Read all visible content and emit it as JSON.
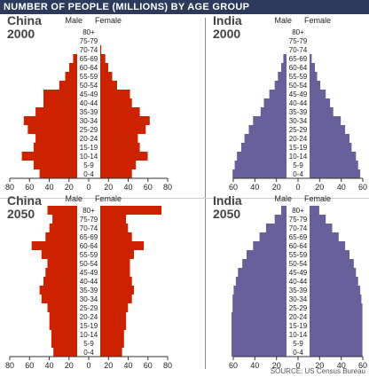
{
  "title": "NUMBER OF PEOPLE (MILLIONS) BY AGE GROUP",
  "source": "SOURCE: US Census Bureau",
  "colors": {
    "china": "#cc2200",
    "india": "#67609a",
    "title_bg": "#2d3a5c",
    "text": "#333333"
  },
  "chart_data": [
    {
      "type": "bar",
      "country": "China",
      "year": "2000",
      "male_label": "Male",
      "female_label": "Female",
      "categories": [
        "80+",
        "75-79",
        "70-74",
        "65-69",
        "60-64",
        "55-59",
        "50-54",
        "45-49",
        "40-44",
        "35-39",
        "30-34",
        "25-29",
        "20-24",
        "15-19",
        "10-14",
        "5-9",
        "0-4"
      ],
      "series": [
        {
          "name": "Male",
          "values": [
            2,
            6,
            10,
            14,
            18,
            22,
            28,
            44,
            44,
            52,
            64,
            60,
            52,
            54,
            66,
            54,
            48
          ]
        },
        {
          "name": "Female",
          "values": [
            3,
            7,
            11,
            15,
            18,
            22,
            27,
            40,
            42,
            50,
            60,
            56,
            48,
            50,
            58,
            46,
            42
          ]
        }
      ],
      "xticks": [
        "80",
        "60",
        "40",
        "20",
        "0",
        "20",
        "40",
        "60",
        "80"
      ],
      "xlim": [
        -80,
        80
      ]
    },
    {
      "type": "bar",
      "country": "India",
      "year": "2000",
      "male_label": "Male",
      "female_label": "Female",
      "categories": [
        "80+",
        "75-79",
        "70-74",
        "65-69",
        "60-64",
        "55-59",
        "50-54",
        "45-49",
        "40-44",
        "35-39",
        "30-34",
        "25-29",
        "20-24",
        "15-19",
        "10-14",
        "5-9",
        "0-4"
      ],
      "series": [
        {
          "name": "Male",
          "values": [
            2,
            4,
            8,
            12,
            14,
            17,
            20,
            25,
            30,
            33,
            40,
            44,
            48,
            51,
            55,
            57,
            59
          ]
        },
        {
          "name": "Female",
          "values": [
            2,
            4,
            7,
            11,
            14,
            16,
            19,
            24,
            28,
            31,
            38,
            42,
            46,
            48,
            52,
            54,
            56
          ]
        }
      ],
      "xticks": [
        "60",
        "40",
        "20",
        "0",
        "20",
        "40",
        "60"
      ],
      "xlim": [
        -60,
        60
      ]
    },
    {
      "type": "bar",
      "country": "China",
      "year": "2050",
      "male_label": "Male",
      "female_label": "Female",
      "categories": [
        "80+",
        "75-79",
        "70-74",
        "65-69",
        "60-64",
        "55-59",
        "50-54",
        "45-49",
        "40-44",
        "35-39",
        "30-34",
        "25-29",
        "20-24",
        "15-19",
        "10-14",
        "5-9",
        "0-4"
      ],
      "series": [
        {
          "name": "Male",
          "values": [
            40,
            35,
            38,
            42,
            56,
            46,
            40,
            42,
            44,
            48,
            46,
            40,
            38,
            38,
            36,
            36,
            34
          ]
        },
        {
          "name": "Female",
          "values": [
            72,
            36,
            38,
            42,
            54,
            44,
            40,
            40,
            42,
            44,
            42,
            38,
            36,
            36,
            34,
            34,
            32
          ]
        }
      ],
      "xticks": [
        "80",
        "60",
        "40",
        "20",
        "0",
        "20",
        "40",
        "60",
        "80"
      ],
      "xlim": [
        -80,
        80
      ]
    },
    {
      "type": "bar",
      "country": "India",
      "year": "2050",
      "male_label": "Male",
      "female_label": "Female",
      "categories": [
        "80+",
        "75-79",
        "70-74",
        "65-69",
        "60-64",
        "55-59",
        "50-54",
        "45-49",
        "40-44",
        "35-39",
        "30-34",
        "25-29",
        "20-24",
        "15-19",
        "10-14",
        "5-9",
        "0-4"
      ],
      "series": [
        {
          "name": "Male",
          "values": [
            14,
            20,
            28,
            34,
            40,
            46,
            50,
            54,
            56,
            58,
            59,
            59,
            60,
            60,
            60,
            60,
            60
          ]
        },
        {
          "name": "Female",
          "values": [
            18,
            24,
            30,
            36,
            42,
            46,
            50,
            52,
            54,
            56,
            57,
            58,
            58,
            58,
            58,
            58,
            58
          ]
        }
      ],
      "xticks": [
        "60",
        "40",
        "20",
        "0",
        "20",
        "40",
        "60"
      ],
      "xlim": [
        -60,
        60
      ]
    }
  ]
}
